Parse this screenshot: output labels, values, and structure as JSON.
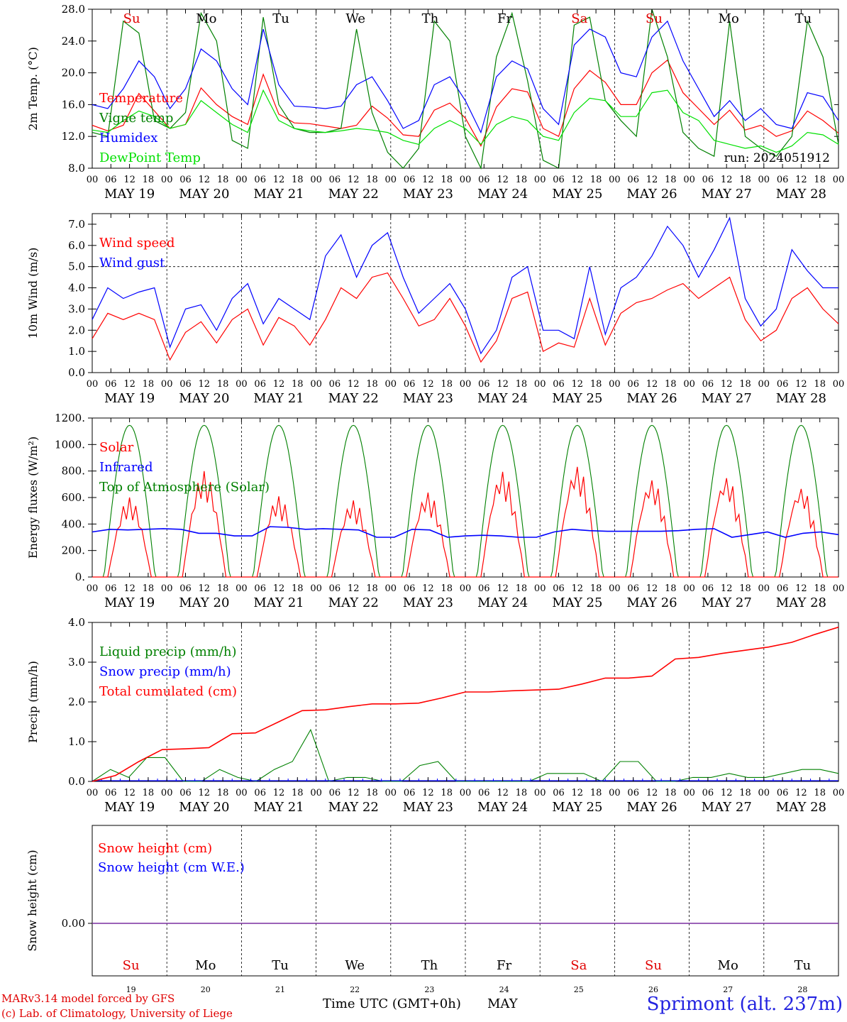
{
  "run_label": "run: 2024051912",
  "day_labels": [
    "Su",
    "Mo",
    "Tu",
    "We",
    "Th",
    "Fr",
    "Sa",
    "Su",
    "Mo",
    "Tu"
  ],
  "day_label_colors": [
    "#e00000",
    "#000000",
    "#000000",
    "#000000",
    "#000000",
    "#000000",
    "#e00000",
    "#e00000",
    "#000000",
    "#000000"
  ],
  "date_labels": [
    "MAY 19",
    "MAY 20",
    "MAY 21",
    "MAY 22",
    "MAY 23",
    "MAY 24",
    "MAY 25",
    "MAY 26",
    "MAY 27",
    "MAY 28"
  ],
  "hour_labels": [
    "00",
    "06",
    "12",
    "18"
  ],
  "end_hour_label": "00",
  "bottom_day_numbers": [
    "19",
    "20",
    "21",
    "22",
    "23",
    "24",
    "25",
    "26",
    "27",
    "28"
  ],
  "footer": {
    "model": "MARv3.14 model forced by GFS",
    "credit": "(c) Lab. of Climatology, University of Liege",
    "time_axis": "Time UTC (GMT+0h)",
    "month": "MAY",
    "station": "Sprimont (alt. 237m)"
  },
  "colors": {
    "temperature": "#ff0000",
    "vigne": "#008000",
    "humidex": "#0000ff",
    "dewpoint": "#00e000"
  },
  "chart_data": [
    {
      "type": "line",
      "ylabel": "2m Temp. (°C)",
      "ylim": [
        8,
        28
      ],
      "yticks": [
        "8.0",
        "12.0",
        "16.0",
        "20.0",
        "24.0",
        "28.0"
      ],
      "x": "hours since May 19 00 UTC, every 6h",
      "series": [
        {
          "name": "Temperature",
          "color": "#ff0000",
          "values": [
            13.4,
            12.7,
            13.4,
            17.4,
            15.2,
            13.0,
            13.5,
            18.1,
            16.0,
            14.5,
            13.5,
            19.8,
            14.8,
            13.7,
            13.6,
            13.3,
            13.0,
            13.4,
            15.8,
            14.3,
            12.2,
            12.0,
            15.3,
            16.2,
            14.3,
            10.8,
            15.7,
            18.0,
            17.6,
            13.0,
            12.0,
            18.0,
            20.3,
            18.8,
            16.0,
            16.0,
            20.0,
            21.6,
            17.5,
            15.5,
            13.5,
            15.3,
            12.8,
            13.4,
            12.0,
            12.7,
            15.2,
            14.0,
            12.4
          ]
        },
        {
          "name": "Vigne temp",
          "color": "#008000",
          "values": [
            12.5,
            12.0,
            26.5,
            25.0,
            14.0,
            13.0,
            15.0,
            27.5,
            24.0,
            11.5,
            10.5,
            27.0,
            16.0,
            13.0,
            12.5,
            12.5,
            13.0,
            25.5,
            15.0,
            10.0,
            8.0,
            10.5,
            26.5,
            24.0,
            12.0,
            8.0,
            22.0,
            27.5,
            19.0,
            9.0,
            8.0,
            26.0,
            27.0,
            16.5,
            14.0,
            12.0,
            28.0,
            22.0,
            12.5,
            10.5,
            9.5,
            26.5,
            12.0,
            10.5,
            9.5,
            12.0,
            26.5,
            22.0,
            11.0
          ]
        },
        {
          "name": "Humidex",
          "color": "#0000ff",
          "values": [
            16.0,
            15.5,
            18.0,
            21.5,
            19.5,
            15.5,
            18.0,
            23.0,
            21.5,
            18.0,
            16.0,
            25.5,
            18.5,
            15.8,
            15.7,
            15.5,
            15.8,
            18.5,
            19.5,
            16.5,
            13.0,
            14.0,
            18.5,
            19.5,
            16.5,
            12.5,
            19.5,
            21.5,
            20.5,
            15.5,
            13.5,
            23.5,
            25.5,
            24.5,
            20.0,
            19.5,
            24.5,
            26.5,
            21.5,
            18.0,
            14.5,
            16.5,
            14.0,
            15.5,
            13.5,
            13.0,
            17.5,
            17.0,
            14.0
          ]
        },
        {
          "name": "DewPoint Temp",
          "color": "#00e000",
          "values": [
            12.8,
            12.5,
            14.0,
            15.2,
            14.5,
            13.0,
            13.5,
            16.5,
            15.0,
            13.5,
            12.5,
            17.8,
            14.0,
            13.0,
            12.7,
            12.5,
            12.7,
            13.0,
            12.8,
            12.5,
            11.5,
            11.0,
            13.0,
            14.0,
            13.0,
            11.0,
            13.5,
            14.5,
            14.0,
            12.0,
            11.5,
            15.0,
            16.8,
            16.5,
            14.5,
            14.5,
            17.5,
            17.8,
            15.0,
            14.0,
            11.5,
            11.0,
            10.5,
            10.8,
            10.0,
            10.8,
            12.5,
            12.2,
            11.0
          ]
        }
      ]
    },
    {
      "type": "line",
      "ylabel": "10m Wind (m/s)",
      "ylim": [
        0,
        7.5
      ],
      "yticks": [
        "0.0",
        "1.0",
        "2.0",
        "3.0",
        "4.0",
        "5.0",
        "6.0",
        "7.0"
      ],
      "reference_line": 5.0,
      "series": [
        {
          "name": "Wind speed",
          "color": "#ff0000",
          "values": [
            1.6,
            2.8,
            2.5,
            2.8,
            2.5,
            0.6,
            1.9,
            2.4,
            1.4,
            2.5,
            3.0,
            1.3,
            2.6,
            2.2,
            1.3,
            2.5,
            4.0,
            3.5,
            4.5,
            4.7,
            3.5,
            2.2,
            2.5,
            3.5,
            2.2,
            0.5,
            1.5,
            3.5,
            3.8,
            1.0,
            1.4,
            1.2,
            3.5,
            1.3,
            2.8,
            3.3,
            3.5,
            3.9,
            4.2,
            3.5,
            4.0,
            4.5,
            2.5,
            1.5,
            2.0,
            3.5,
            4.0,
            3.0,
            2.3
          ]
        },
        {
          "name": "Wind gust",
          "color": "#0000ff",
          "values": [
            2.5,
            4.0,
            3.5,
            3.8,
            4.0,
            1.2,
            3.0,
            3.2,
            2.0,
            3.5,
            4.2,
            2.3,
            3.5,
            3.0,
            2.5,
            5.5,
            6.5,
            4.5,
            6.0,
            6.6,
            4.5,
            2.8,
            3.5,
            4.2,
            3.0,
            0.9,
            2.0,
            4.5,
            5.0,
            2.0,
            2.0,
            1.6,
            5.0,
            1.8,
            4.0,
            4.5,
            5.5,
            6.9,
            6.0,
            4.5,
            5.8,
            7.3,
            3.5,
            2.2,
            3.0,
            5.8,
            4.8,
            4.0,
            4.0
          ]
        }
      ]
    },
    {
      "type": "line",
      "ylabel": "Energy fluxes (W/m2)",
      "ylim": [
        0,
        1200
      ],
      "yticks": [
        "0.",
        "200.",
        "400.",
        "600.",
        "800.",
        "1000.",
        "1200."
      ],
      "series": [
        {
          "name": "Solar",
          "color": "#ff0000",
          "daily_peaks": [
            600,
            800,
            610,
            580,
            640,
            800,
            840,
            740,
            760,
            680
          ]
        },
        {
          "name": "Infrared",
          "color": "#0000ff",
          "values": [
            340,
            360,
            355,
            360,
            365,
            360,
            330,
            330,
            310,
            310,
            380,
            375,
            360,
            365,
            360,
            355,
            300,
            300,
            360,
            355,
            300,
            310,
            315,
            310,
            300,
            300,
            340,
            360,
            350,
            345,
            345,
            345,
            345,
            350,
            360,
            365,
            300,
            320,
            340,
            300,
            330,
            340,
            320
          ]
        },
        {
          "name": "Top of Atmosphere (Solar)",
          "color": "#008000",
          "daily_peak": 1145
        }
      ]
    },
    {
      "type": "line",
      "ylabel": "Precip (mm/h)",
      "ylim": [
        0,
        4
      ],
      "yticks": [
        "0.0",
        "1.0",
        "2.0",
        "3.0",
        "4.0"
      ],
      "series": [
        {
          "name": "Liquid precip (mm/h)",
          "color": "#008000",
          "values": [
            0.0,
            0.3,
            0.1,
            0.6,
            0.6,
            0.0,
            0.0,
            0.3,
            0.1,
            0.0,
            0.3,
            0.5,
            1.3,
            0.0,
            0.1,
            0.1,
            0.0,
            0.0,
            0.4,
            0.5,
            0.0,
            0.0,
            0.0,
            0.0,
            0.0,
            0.2,
            0.2,
            0.2,
            0.0,
            0.5,
            0.5,
            0.0,
            0.0,
            0.1,
            0.1,
            0.2,
            0.1,
            0.1,
            0.2,
            0.3,
            0.3,
            0.2
          ]
        },
        {
          "name": "Snow precip (mm/h)",
          "color": "#0000ff",
          "values": [
            0
          ]
        },
        {
          "name": "Total cumulated (cm)",
          "color": "#ff0000",
          "values": [
            0.0,
            0.15,
            0.5,
            0.8,
            0.82,
            0.85,
            1.2,
            1.22,
            1.5,
            1.78,
            1.8,
            1.88,
            1.95,
            1.95,
            1.97,
            2.1,
            2.25,
            2.25,
            2.28,
            2.3,
            2.32,
            2.45,
            2.6,
            2.6,
            2.65,
            3.08,
            3.12,
            3.22,
            3.3,
            3.38,
            3.5,
            3.7,
            3.88
          ]
        }
      ]
    },
    {
      "type": "line",
      "ylabel": "Snow height (cm)",
      "yticks": [
        "0.00"
      ],
      "series": [
        {
          "name": "Snow height (cm)",
          "color": "#ff0000",
          "values": [
            0
          ]
        },
        {
          "name": "Snow height (cm W.E.)",
          "color": "#0000ff",
          "values": [
            0
          ]
        }
      ]
    }
  ]
}
